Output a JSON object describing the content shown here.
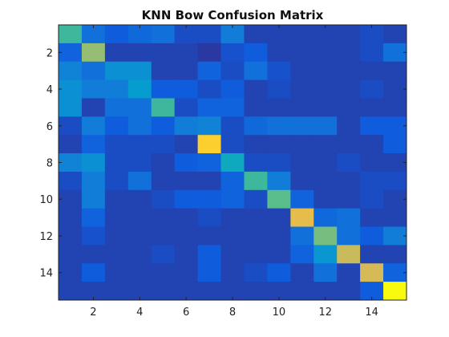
{
  "chart_data": {
    "type": "heatmap",
    "title": "KNN Bow Confusion Matrix",
    "xlabel": "",
    "ylabel": "",
    "colormap": "parula",
    "value_range": [
      0,
      1
    ],
    "rows": 15,
    "cols": 15,
    "x_ticks": [
      2,
      4,
      6,
      8,
      10,
      12,
      14
    ],
    "y_ticks": [
      2,
      4,
      6,
      8,
      10,
      12,
      14
    ],
    "x_tick_labels": [
      "2",
      "4",
      "6",
      "8",
      "10",
      "12",
      "14"
    ],
    "y_tick_labels": [
      "2",
      "4",
      "6",
      "8",
      "10",
      "12",
      "14"
    ],
    "grid": false,
    "values": [
      [
        0.46,
        0.16,
        0.1,
        0.14,
        0.16,
        0.07,
        0.07,
        0.2,
        0.05,
        0.05,
        0.05,
        0.05,
        0.05,
        0.07,
        0.05
      ],
      [
        0.12,
        0.58,
        0.05,
        0.05,
        0.05,
        0.05,
        0.03,
        0.08,
        0.1,
        0.05,
        0.05,
        0.05,
        0.05,
        0.07,
        0.16
      ],
      [
        0.22,
        0.16,
        0.26,
        0.26,
        0.05,
        0.05,
        0.12,
        0.07,
        0.16,
        0.08,
        0.05,
        0.05,
        0.05,
        0.05,
        0.05
      ],
      [
        0.26,
        0.2,
        0.2,
        0.3,
        0.1,
        0.1,
        0.07,
        0.1,
        0.05,
        0.07,
        0.05,
        0.05,
        0.05,
        0.07,
        0.05
      ],
      [
        0.26,
        0.05,
        0.16,
        0.16,
        0.46,
        0.07,
        0.12,
        0.12,
        0.05,
        0.05,
        0.05,
        0.05,
        0.05,
        0.05,
        0.05
      ],
      [
        0.07,
        0.2,
        0.1,
        0.16,
        0.1,
        0.2,
        0.22,
        0.07,
        0.14,
        0.16,
        0.16,
        0.16,
        0.05,
        0.1,
        0.1
      ],
      [
        0.05,
        0.12,
        0.07,
        0.07,
        0.07,
        0.05,
        0.8,
        0.07,
        0.05,
        0.05,
        0.05,
        0.05,
        0.05,
        0.05,
        0.1
      ],
      [
        0.22,
        0.26,
        0.07,
        0.07,
        0.05,
        0.1,
        0.12,
        0.36,
        0.07,
        0.07,
        0.05,
        0.05,
        0.07,
        0.05,
        0.05
      ],
      [
        0.07,
        0.2,
        0.07,
        0.16,
        0.05,
        0.05,
        0.05,
        0.12,
        0.46,
        0.2,
        0.05,
        0.05,
        0.05,
        0.07,
        0.07
      ],
      [
        0.05,
        0.2,
        0.05,
        0.05,
        0.07,
        0.1,
        0.1,
        0.12,
        0.07,
        0.5,
        0.12,
        0.05,
        0.05,
        0.07,
        0.05
      ],
      [
        0.05,
        0.12,
        0.05,
        0.05,
        0.05,
        0.05,
        0.07,
        0.05,
        0.05,
        0.05,
        0.72,
        0.14,
        0.16,
        0.05,
        0.05
      ],
      [
        0.05,
        0.08,
        0.05,
        0.05,
        0.05,
        0.05,
        0.05,
        0.05,
        0.05,
        0.05,
        0.16,
        0.54,
        0.16,
        0.1,
        0.2
      ],
      [
        0.05,
        0.05,
        0.05,
        0.05,
        0.07,
        0.05,
        0.1,
        0.05,
        0.05,
        0.05,
        0.12,
        0.28,
        0.66,
        0.05,
        0.05
      ],
      [
        0.05,
        0.1,
        0.05,
        0.05,
        0.05,
        0.05,
        0.1,
        0.05,
        0.07,
        0.1,
        0.05,
        0.16,
        0.05,
        0.68,
        0.12
      ],
      [
        0.05,
        0.05,
        0.05,
        0.05,
        0.05,
        0.05,
        0.05,
        0.05,
        0.05,
        0.05,
        0.05,
        0.05,
        0.05,
        0.1,
        1.0
      ]
    ]
  }
}
